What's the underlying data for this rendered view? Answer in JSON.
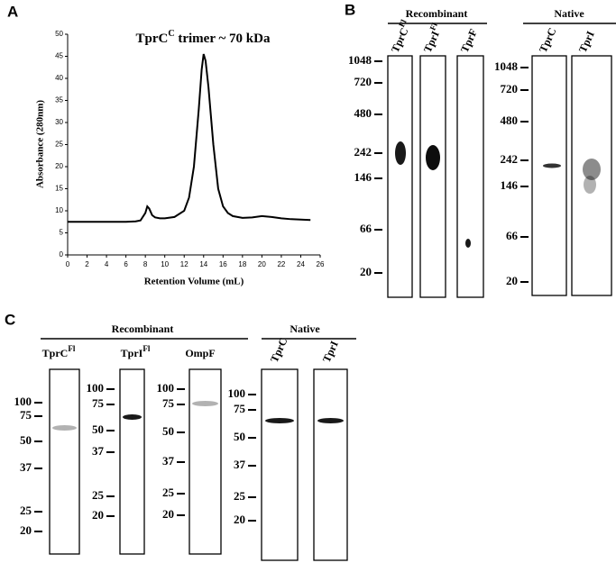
{
  "chart_data": {
    "type": "line",
    "panel": "A",
    "title_main": "TprC",
    "title_sup": "C",
    "title_rest": " trimer ~ 70 kDa",
    "x_label": "Retention Volume (mL)",
    "y_label": "Absorbance (280nm)",
    "x": [
      0,
      1,
      2,
      3,
      4,
      5,
      6,
      7,
      7.5,
      8,
      8.2,
      8.4,
      8.7,
      9,
      9.5,
      10,
      11,
      12,
      12.5,
      13,
      13.5,
      13.8,
      14,
      14.2,
      14.5,
      15,
      15.5,
      16,
      16.5,
      17,
      18,
      19,
      20,
      21,
      22,
      23,
      24,
      25
    ],
    "series": [
      {
        "color": "#000000",
        "values": [
          7.5,
          7.5,
          7.5,
          7.5,
          7.5,
          7.5,
          7.5,
          7.6,
          7.8,
          9.5,
          11,
          10.5,
          9,
          8.5,
          8.3,
          8.3,
          8.6,
          10,
          13,
          20,
          33,
          42,
          45.5,
          44,
          38,
          25,
          15,
          11,
          9.5,
          8.8,
          8.4,
          8.5,
          8.8,
          8.6,
          8.3,
          8.1,
          8.0,
          7.9
        ]
      }
    ],
    "xlim": [
      0,
      26
    ],
    "ylim": [
      0,
      50
    ],
    "xticks": [
      0,
      2,
      4,
      6,
      8,
      10,
      12,
      14,
      16,
      18,
      20,
      22,
      24,
      26
    ],
    "yticks": [
      0,
      5,
      10,
      15,
      20,
      25,
      30,
      35,
      40,
      45,
      50
    ]
  },
  "panel_b": {
    "label": "B",
    "recombinant": {
      "heading": "Recombinant",
      "lanes": [
        {
          "name": "TprC",
          "sup": "Fl"
        },
        {
          "name": "TprI",
          "sup": "Fl"
        },
        {
          "name": "TprF"
        }
      ],
      "ladder": [
        1048,
        720,
        480,
        242,
        146,
        66,
        20
      ]
    },
    "native": {
      "heading": "Native",
      "lanes": [
        {
          "name": "TprC"
        },
        {
          "name": "TprI"
        }
      ],
      "ladder": [
        1048,
        720,
        480,
        242,
        146,
        66,
        20
      ]
    }
  },
  "panel_c": {
    "label": "C",
    "recombinant": {
      "heading": "Recombinant",
      "lanes": [
        {
          "name": "TprC",
          "sup": "Fl",
          "ladder": [
            100,
            75,
            50,
            37,
            25,
            20
          ]
        },
        {
          "name": "TprI",
          "sup": "Fl",
          "ladder": [
            100,
            75,
            50,
            37,
            25,
            20
          ]
        },
        {
          "name": "OmpF",
          "ladder": [
            100,
            75,
            50,
            37,
            25,
            20
          ]
        }
      ]
    },
    "native": {
      "heading": "Native",
      "lanes": [
        {
          "name": "TprC"
        },
        {
          "name": "TprI"
        }
      ],
      "ladder": [
        100,
        75,
        50,
        37,
        25,
        20
      ]
    }
  }
}
